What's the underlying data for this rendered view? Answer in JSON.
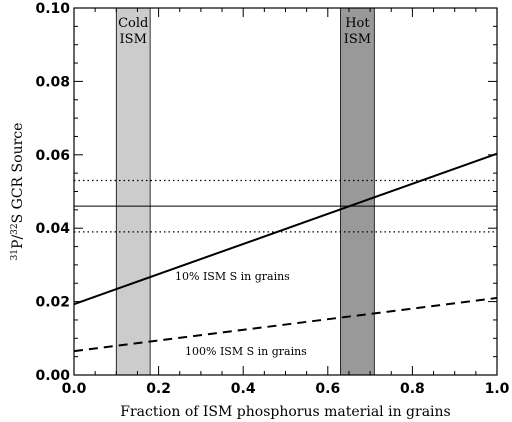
{
  "chart_data": {
    "type": "line",
    "title": "",
    "xlabel": "Fraction of ISM phosphorus material in grains",
    "ylabel_parts": {
      "sup1": "31",
      "p": "P/",
      "sup2": "32",
      "rest": "S GCR Source"
    },
    "xlim": [
      0.0,
      1.0
    ],
    "ylim": [
      0.0,
      0.1
    ],
    "x_ticks": [
      "0.0",
      "0.2",
      "0.4",
      "0.6",
      "0.8",
      "1.0"
    ],
    "y_ticks": [
      "0.00",
      "0.02",
      "0.04",
      "0.06",
      "0.08",
      "0.10"
    ],
    "bands": [
      {
        "name": "Cold",
        "name2": "ISM",
        "x0": 0.1,
        "x1": 0.18,
        "color": "#cccccc"
      },
      {
        "name": "Hot",
        "name2": "ISM",
        "x0": 0.63,
        "x1": 0.71,
        "color": "#999999"
      }
    ],
    "hlines": [
      {
        "y": 0.046,
        "style": "solid"
      },
      {
        "y": 0.053,
        "style": "dotted"
      },
      {
        "y": 0.039,
        "style": "dotted"
      }
    ],
    "series": [
      {
        "name": "10% ISM S in grains",
        "style": "solid",
        "x": [
          0.0,
          1.0
        ],
        "y": [
          0.0193,
          0.0603
        ]
      },
      {
        "name": "100% ISM S in grains",
        "style": "dashed",
        "x": [
          0.0,
          1.0
        ],
        "y": [
          0.0065,
          0.021
        ]
      }
    ]
  }
}
